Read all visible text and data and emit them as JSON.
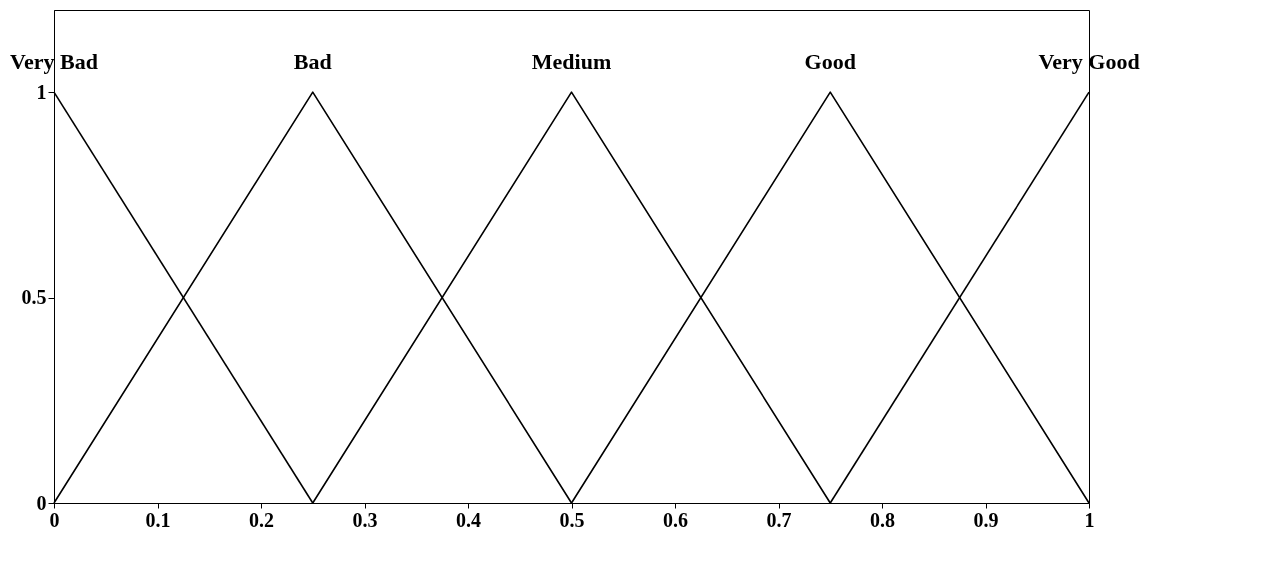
{
  "chart_data": {
    "type": "line",
    "xlim": [
      0,
      1
    ],
    "ylim": [
      0,
      1.2
    ],
    "xticks": [
      0,
      0.1,
      0.2,
      0.3,
      0.4,
      0.5,
      0.6,
      0.7,
      0.8,
      0.9,
      1
    ],
    "yticks": [
      0,
      0.5,
      1
    ],
    "grid": false,
    "legend": false,
    "marker": "none",
    "line_style": "solid",
    "series": [
      {
        "name": "Very Bad",
        "color": "#000000",
        "x": [
          0,
          0.25
        ],
        "values": [
          1,
          0
        ]
      },
      {
        "name": "Bad",
        "color": "#000000",
        "x": [
          0,
          0.25,
          0.5
        ],
        "values": [
          0,
          1,
          0
        ]
      },
      {
        "name": "Medium",
        "color": "#000000",
        "x": [
          0.25,
          0.5,
          0.75
        ],
        "values": [
          0,
          1,
          0
        ]
      },
      {
        "name": "Good",
        "color": "#000000",
        "x": [
          0.5,
          0.75,
          1
        ],
        "values": [
          0,
          1,
          0
        ]
      },
      {
        "name": "Very Good",
        "color": "#000000",
        "x": [
          0.75,
          1
        ],
        "values": [
          0,
          1
        ]
      }
    ]
  }
}
